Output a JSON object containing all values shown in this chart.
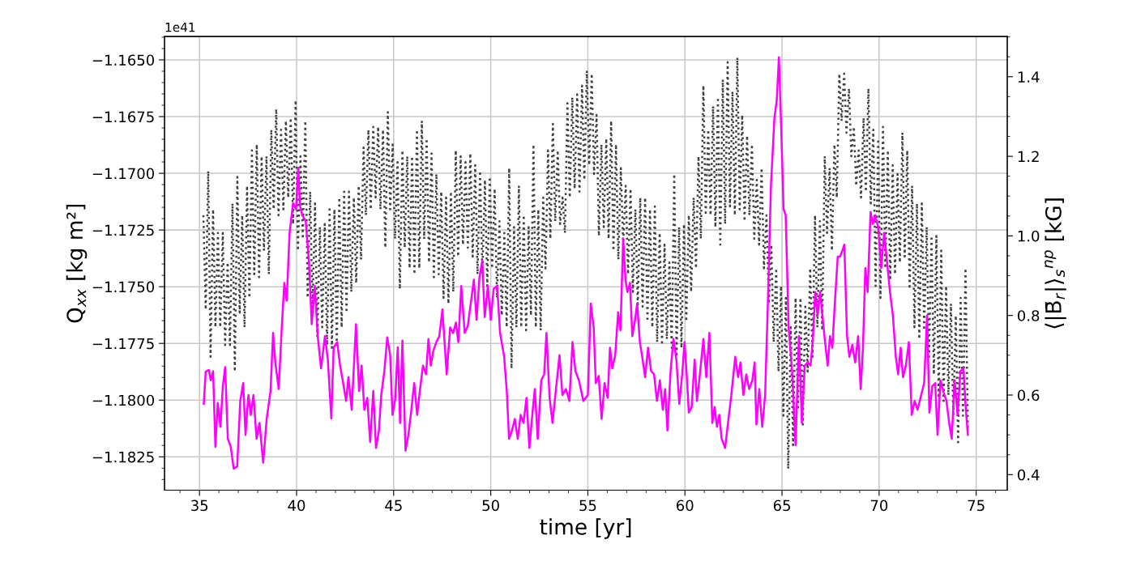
{
  "chart_data": {
    "type": "line",
    "xlabel": "time [yr]",
    "ylabel": "Q$_{xx}$ [kg m²]",
    "y2label": "⟨|B̄$_{r}$|⟩$_{s}$$^{np}$ [kG]",
    "annotations": [
      "1e41"
    ],
    "xlim": [
      33.2,
      76.6
    ],
    "xticks": [
      35,
      40,
      45,
      50,
      55,
      60,
      65,
      70,
      75
    ],
    "ylim": [
      -1.18397,
      -1.16397
    ],
    "yticks": [
      {
        "value": -1.1825,
        "label": "−1.1825"
      },
      {
        "value": -1.18,
        "label": "−1.1800"
      },
      {
        "value": -1.1775,
        "label": "−1.1775"
      },
      {
        "value": -1.175,
        "label": "−1.1750"
      },
      {
        "value": -1.1725,
        "label": "−1.1725"
      },
      {
        "value": -1.17,
        "label": "−1.1700"
      },
      {
        "value": -1.1675,
        "label": "−1.1675"
      },
      {
        "value": -1.165,
        "label": "−1.1650"
      }
    ],
    "y2lim": [
      0.361,
      1.501
    ],
    "y2ticks": [
      {
        "value": 0.4,
        "label": "0.4"
      },
      {
        "value": 0.6,
        "label": "0.6"
      },
      {
        "value": 0.8,
        "label": "0.8"
      },
      {
        "value": 1.0,
        "label": "1.0"
      },
      {
        "value": 1.2,
        "label": "1.2"
      },
      {
        "value": 1.4,
        "label": "1.4"
      }
    ],
    "grid": true,
    "legend": false,
    "series": [
      {
        "color": "#404040",
        "line_style": "dotted",
        "axis": "y",
        "x": [
          35.2,
          35.32,
          35.45,
          35.57,
          35.7,
          35.82,
          35.95,
          36.07,
          36.2,
          36.32,
          36.45,
          36.57,
          36.7,
          36.82,
          36.95,
          37.07,
          37.2,
          37.32,
          37.45,
          37.57,
          37.7,
          37.82,
          37.95,
          38.07,
          38.2,
          38.32,
          38.45,
          38.57,
          38.7,
          38.82,
          38.95,
          39.07,
          39.2,
          39.32,
          39.45,
          39.57,
          39.7,
          39.82,
          39.95,
          40.07,
          40.2,
          40.32,
          40.45,
          40.57,
          40.7,
          40.82,
          40.95,
          41.07,
          41.2,
          41.32,
          41.45,
          41.57,
          41.7,
          41.82,
          41.95,
          42.07,
          42.2,
          42.32,
          42.45,
          42.57,
          42.7,
          42.82,
          42.95,
          43.07,
          43.2,
          43.32,
          43.45,
          43.57,
          43.7,
          43.82,
          43.95,
          44.07,
          44.2,
          44.32,
          44.45,
          44.57,
          44.7,
          44.82,
          44.95,
          45.07,
          45.2,
          45.32,
          45.45,
          45.57,
          45.7,
          45.82,
          45.95,
          46.07,
          46.2,
          46.32,
          46.45,
          46.57,
          46.7,
          46.82,
          46.95,
          47.07,
          47.2,
          47.32,
          47.45,
          47.57,
          47.7,
          47.82,
          47.95,
          48.07,
          48.2,
          48.32,
          48.45,
          48.57,
          48.7,
          48.82,
          48.95,
          49.07,
          49.2,
          49.32,
          49.45,
          49.57,
          49.7,
          49.82,
          49.95,
          50.07,
          50.2,
          50.32,
          50.45,
          50.57,
          50.7,
          50.82,
          50.95,
          51.07,
          51.2,
          51.32,
          51.45,
          51.57,
          51.7,
          51.82,
          51.95,
          52.07,
          52.2,
          52.32,
          52.45,
          52.57,
          52.7,
          52.82,
          52.95,
          53.07,
          53.2,
          53.32,
          53.45,
          53.57,
          53.7,
          53.82,
          53.95,
          54.07,
          54.2,
          54.32,
          54.45,
          54.57,
          54.7,
          54.82,
          54.95,
          55.07,
          55.2,
          55.32,
          55.45,
          55.57,
          55.7,
          55.82,
          55.95,
          56.07,
          56.2,
          56.32,
          56.45,
          56.57,
          56.7,
          56.82,
          56.95,
          57.07,
          57.2,
          57.32,
          57.45,
          57.57,
          57.7,
          57.82,
          57.95,
          58.07,
          58.2,
          58.32,
          58.45,
          58.57,
          58.7,
          58.82,
          58.95,
          59.07,
          59.2,
          59.32,
          59.45,
          59.57,
          59.7,
          59.82,
          59.95,
          60.07,
          60.2,
          60.32,
          60.45,
          60.57,
          60.7,
          60.82,
          60.95,
          61.07,
          61.2,
          61.32,
          61.45,
          61.57,
          61.7,
          61.82,
          61.95,
          62.07,
          62.2,
          62.32,
          62.45,
          62.57,
          62.7,
          62.82,
          62.95,
          63.07,
          63.2,
          63.32,
          63.45,
          63.57,
          63.7,
          63.82,
          63.95,
          64.07,
          64.2,
          64.32,
          64.45,
          64.57,
          64.7,
          64.82,
          64.95,
          65.07,
          65.2,
          65.32,
          65.45,
          65.57,
          65.7,
          65.82,
          65.95,
          66.07,
          66.2,
          66.32,
          66.45,
          66.57,
          66.7,
          66.82,
          66.95,
          67.07,
          67.2,
          67.32,
          67.45,
          67.57,
          67.7,
          67.82,
          67.95,
          68.07,
          68.2,
          68.32,
          68.45,
          68.57,
          68.7,
          68.82,
          68.95,
          69.07,
          69.2,
          69.32,
          69.45,
          69.57,
          69.7,
          69.82,
          69.95,
          70.07,
          70.2,
          70.32,
          70.45,
          70.57,
          70.7,
          70.82,
          70.95,
          71.07,
          71.2,
          71.32,
          71.45,
          71.57,
          71.7,
          71.82,
          71.95,
          72.07,
          72.2,
          72.32,
          72.45,
          72.57,
          72.7,
          72.82,
          72.95,
          73.07,
          73.2,
          73.32,
          73.45,
          73.57,
          73.7,
          73.82,
          73.95,
          74.07,
          74.2,
          74.32,
          74.45,
          74.57
        ],
        "values": [
          -1.17185,
          -1.17601,
          -1.1699,
          -1.17809,
          -1.17159,
          -1.17679,
          -1.17263,
          -1.17679,
          -1.17263,
          -1.17757,
          -1.17393,
          -1.17757,
          -1.17133,
          -1.17874,
          -1.17016,
          -1.17614,
          -1.17185,
          -1.17679,
          -1.17055,
          -1.17549,
          -1.16899,
          -1.17445,
          -1.16873,
          -1.17458,
          -1.16925,
          -1.17341,
          -1.16925,
          -1.17445,
          -1.16808,
          -1.17159,
          -1.16717,
          -1.17185,
          -1.16808,
          -1.17159,
          -1.16769,
          -1.17107,
          -1.16756,
          -1.17224,
          -1.16678,
          -1.17341,
          -1.16925,
          -1.17289,
          -1.16769,
          -1.17549,
          -1.17081,
          -1.17614,
          -1.17133,
          -1.17718,
          -1.17237,
          -1.17679,
          -1.17224,
          -1.17757,
          -1.17159,
          -1.1777,
          -1.17159,
          -1.17757,
          -1.17107,
          -1.17679,
          -1.17081,
          -1.17614,
          -1.17081,
          -1.17523,
          -1.17107,
          -1.17484,
          -1.17055,
          -1.1738,
          -1.16886,
          -1.17185,
          -1.16808,
          -1.17159,
          -1.16795,
          -1.17107,
          -1.16795,
          -1.17159,
          -1.16808,
          -1.17328,
          -1.1673,
          -1.17159,
          -1.16873,
          -1.17289,
          -1.16951,
          -1.1751,
          -1.16899,
          -1.17328,
          -1.16925,
          -1.17419,
          -1.16925,
          -1.17445,
          -1.16808,
          -1.17419,
          -1.16769,
          -1.17289,
          -1.16847,
          -1.17393,
          -1.16912,
          -1.17458,
          -1.17003,
          -1.17445,
          -1.17081,
          -1.17549,
          -1.17107,
          -1.17575,
          -1.17081,
          -1.17523,
          -1.16899,
          -1.17367,
          -1.16925,
          -1.17315,
          -1.16951,
          -1.17328,
          -1.16912,
          -1.17367,
          -1.16964,
          -1.17445,
          -1.1699,
          -1.17445,
          -1.17029,
          -1.17497,
          -1.17016,
          -1.17419,
          -1.17068,
          -1.17549,
          -1.17211,
          -1.17627,
          -1.17263,
          -1.17679,
          -1.16977,
          -1.17861,
          -1.17237,
          -1.17679,
          -1.17055,
          -1.17679,
          -1.17185,
          -1.17692,
          -1.17237,
          -1.17627,
          -1.16873,
          -1.17679,
          -1.17159,
          -1.17692,
          -1.17107,
          -1.17419,
          -1.16899,
          -1.17289,
          -1.16782,
          -1.17211,
          -1.16899,
          -1.17224,
          -1.17107,
          -1.17263,
          -1.16691,
          -1.17107,
          -1.16665,
          -1.17068,
          -1.16652,
          -1.17081,
          -1.16613,
          -1.17029,
          -1.16548,
          -1.16964,
          -1.16561,
          -1.17003,
          -1.16743,
          -1.17276,
          -1.16873,
          -1.17237,
          -1.16847,
          -1.17289,
          -1.16769,
          -1.17341,
          -1.16873,
          -1.1738,
          -1.16977,
          -1.17315,
          -1.17055,
          -1.17445,
          -1.17068,
          -1.17523,
          -1.17159,
          -1.17588,
          -1.17107,
          -1.17588,
          -1.17107,
          -1.17653,
          -1.17159,
          -1.17679,
          -1.17146,
          -1.17744,
          -1.17263,
          -1.17757,
          -1.17315,
          -1.17731,
          -1.17393,
          -1.1777,
          -1.17003,
          -1.17809,
          -1.17237,
          -1.1777,
          -1.17224,
          -1.17653,
          -1.17185,
          -1.17523,
          -1.17107,
          -1.17419,
          -1.16925,
          -1.17289,
          -1.16613,
          -1.17185,
          -1.16808,
          -1.17185,
          -1.16704,
          -1.17237,
          -1.16665,
          -1.17315,
          -1.16587,
          -1.17224,
          -1.1651,
          -1.17146,
          -1.16639,
          -1.17185,
          -1.1649,
          -1.17159,
          -1.16743,
          -1.17211,
          -1.16834,
          -1.17185,
          -1.16873,
          -1.17289,
          -1.17029,
          -1.17315,
          -1.16977,
          -1.17419,
          -1.17185,
          -1.17575,
          -1.17315,
          -1.17744,
          -1.17419,
          -1.17874,
          -1.17497,
          -1.18069,
          -1.17549,
          -1.18303,
          -1.17679,
          -1.18199,
          -1.17549,
          -1.18043,
          -1.17549,
          -1.18108,
          -1.17588,
          -1.17874,
          -1.17419,
          -1.17809,
          -1.17185,
          -1.17679,
          -1.17211,
          -1.17692,
          -1.16925,
          -1.17263,
          -1.16977,
          -1.17341,
          -1.16873,
          -1.17107,
          -1.16561,
          -1.16769,
          -1.16561,
          -1.16821,
          -1.16626,
          -1.16925,
          -1.16795,
          -1.17055,
          -1.16899,
          -1.17107,
          -1.16756,
          -1.17081,
          -1.16626,
          -1.17133,
          -1.16808,
          -1.17497,
          -1.1686,
          -1.17549,
          -1.16795,
          -1.17419,
          -1.16899,
          -1.17471,
          -1.16964,
          -1.17445,
          -1.17003,
          -1.17393,
          -1.16821,
          -1.17367,
          -1.16899,
          -1.1751,
          -1.17055,
          -1.17679,
          -1.17133,
          -1.17731,
          -1.17133,
          -1.17692,
          -1.17237,
          -1.17809,
          -1.17276,
          -1.17887,
          -1.17276,
          -1.17991,
          -1.17341,
          -1.18004,
          -1.17497,
          -1.17978,
          -1.17575,
          -1.18069,
          -1.17627,
          -1.18186,
          -1.17549,
          -1.18069,
          -1.17419,
          -1.18121
        ]
      },
      {
        "color": "#ff00ff",
        "line_style": "solid",
        "axis": "y2",
        "x": [
          35.22,
          35.32,
          35.48,
          35.58,
          35.7,
          35.82,
          35.94,
          36.08,
          36.2,
          36.32,
          36.46,
          36.61,
          36.76,
          36.94,
          37.1,
          37.25,
          37.37,
          37.52,
          37.64,
          37.78,
          37.94,
          38.09,
          38.28,
          38.46,
          38.66,
          38.79,
          38.91,
          39.08,
          39.23,
          39.37,
          39.49,
          39.64,
          39.82,
          39.97,
          40.09,
          40.18,
          40.3,
          40.47,
          40.64,
          40.78,
          40.94,
          41.09,
          41.26,
          41.46,
          41.61,
          41.79,
          41.91,
          42.09,
          42.24,
          42.4,
          42.55,
          42.67,
          42.84,
          43.06,
          43.22,
          43.35,
          43.49,
          43.64,
          43.79,
          43.95,
          44.09,
          44.24,
          44.36,
          44.52,
          44.67,
          44.82,
          44.94,
          45.08,
          45.21,
          45.33,
          45.45,
          45.61,
          45.76,
          45.91,
          46.06,
          46.21,
          46.36,
          46.51,
          46.67,
          46.79,
          46.91,
          47.04,
          47.2,
          47.35,
          47.51,
          47.73,
          47.91,
          48.06,
          48.21,
          48.33,
          48.48,
          48.66,
          48.82,
          49.01,
          49.13,
          49.27,
          49.42,
          49.56,
          49.69,
          49.85,
          50.0,
          50.15,
          50.33,
          50.48,
          50.69,
          50.83,
          50.94,
          51.09,
          51.24,
          51.39,
          51.54,
          51.69,
          51.84,
          51.99,
          52.15,
          52.27,
          52.42,
          52.6,
          52.75,
          52.87,
          53.03,
          53.18,
          53.36,
          53.54,
          53.69,
          53.87,
          54.05,
          54.21,
          54.36,
          54.54,
          54.77,
          55.0,
          55.15,
          55.3,
          55.41,
          55.56,
          55.71,
          55.86,
          56.02,
          56.14,
          56.26,
          56.41,
          56.56,
          56.68,
          56.82,
          56.94,
          57.04,
          57.17,
          57.29,
          57.42,
          57.54,
          57.68,
          57.8,
          57.95,
          58.1,
          58.26,
          58.41,
          58.56,
          58.71,
          58.86,
          58.98,
          59.1,
          59.26,
          59.41,
          59.56,
          59.71,
          59.86,
          59.98,
          60.08,
          60.2,
          60.35,
          60.5,
          60.62,
          60.77,
          60.95,
          61.1,
          61.26,
          61.41,
          61.53,
          61.65,
          61.77,
          61.89,
          62.07,
          62.22,
          62.39,
          62.59,
          62.74,
          62.86,
          63.01,
          63.16,
          63.31,
          63.47,
          63.59,
          63.68,
          63.83,
          63.98,
          64.13,
          64.28,
          64.43,
          64.61,
          64.73,
          64.84,
          64.96,
          65.08,
          65.19,
          65.34,
          65.52,
          65.7,
          65.87,
          66.02,
          66.17,
          66.32,
          66.47,
          66.59,
          66.71,
          66.83,
          66.96,
          67.08,
          67.2,
          67.35,
          67.47,
          67.59,
          67.71,
          67.87,
          67.99,
          68.11,
          68.21,
          68.35,
          68.47,
          68.62,
          68.77,
          68.92,
          69.05,
          69.17,
          69.29,
          69.41,
          69.56,
          69.68,
          69.8,
          69.95,
          70.11,
          70.26,
          70.41,
          70.56,
          70.71,
          70.86,
          70.98,
          71.11,
          71.23,
          71.38,
          71.53,
          71.68,
          71.83,
          71.98,
          72.13,
          72.32,
          72.47,
          72.59,
          72.74,
          72.89,
          73.01,
          73.16,
          73.32,
          73.47,
          73.62,
          73.74,
          73.89,
          74.04,
          74.19,
          74.34,
          74.47,
          74.57
        ],
        "values": [
          0.578,
          0.659,
          0.663,
          0.637,
          0.66,
          0.47,
          0.58,
          0.52,
          0.62,
          0.67,
          0.49,
          0.47,
          0.415,
          0.42,
          0.585,
          0.63,
          0.5,
          0.6,
          0.55,
          0.6,
          0.49,
          0.53,
          0.43,
          0.54,
          0.61,
          0.756,
          0.68,
          0.615,
          0.763,
          0.882,
          0.837,
          1.008,
          1.082,
          1.067,
          1.171,
          1.074,
          1.052,
          1.037,
          0.934,
          0.778,
          0.874,
          0.748,
          0.667,
          0.748,
          0.689,
          0.541,
          0.719,
          0.733,
          0.674,
          0.63,
          0.585,
          0.645,
          0.563,
          0.778,
          0.61,
          0.674,
          0.563,
          0.593,
          0.482,
          0.61,
          0.467,
          0.51,
          0.6,
          0.66,
          0.745,
          0.7,
          0.55,
          0.59,
          0.72,
          0.53,
          0.737,
          0.46,
          0.5,
          0.563,
          0.63,
          0.55,
          0.615,
          0.674,
          0.652,
          0.741,
          0.674,
          0.711,
          0.733,
          0.748,
          0.815,
          0.652,
          0.77,
          0.756,
          0.782,
          0.733,
          0.874,
          0.756,
          0.774,
          0.845,
          0.89,
          0.789,
          0.896,
          0.937,
          0.796,
          0.874,
          0.789,
          0.867,
          0.874,
          0.756,
          0.696,
          0.607,
          0.49,
          0.51,
          0.54,
          0.49,
          0.55,
          0.53,
          0.593,
          0.467,
          0.556,
          0.615,
          0.49,
          0.637,
          0.652,
          0.756,
          0.593,
          0.53,
          0.615,
          0.7,
          0.6,
          0.615,
          0.585,
          0.733,
          0.66,
          0.637,
          0.585,
          0.6,
          0.83,
          0.77,
          0.63,
          0.648,
          0.54,
          0.63,
          0.593,
          0.719,
          0.667,
          0.7,
          0.808,
          0.763,
          0.993,
          0.889,
          0.859,
          0.882,
          0.748,
          0.785,
          0.83,
          0.733,
          0.696,
          0.645,
          0.719,
          0.66,
          0.652,
          0.585,
          0.637,
          0.563,
          0.615,
          0.511,
          0.66,
          0.741,
          0.689,
          0.578,
          0.652,
          0.733,
          0.66,
          0.556,
          0.57,
          0.689,
          0.585,
          0.652,
          0.741,
          0.645,
          0.756,
          0.53,
          0.57,
          0.52,
          0.55,
          0.49,
          0.467,
          0.53,
          0.6,
          0.696,
          0.645,
          0.682,
          0.6,
          0.652,
          0.615,
          0.637,
          0.682,
          0.526,
          0.615,
          0.52,
          0.6,
          0.845,
          1.126,
          1.297,
          1.341,
          1.449,
          1.267,
          1.067,
          1.052,
          0.77,
          0.66,
          0.474,
          0.748,
          0.53,
          0.674,
          0.682,
          0.674,
          0.741,
          0.859,
          0.8,
          0.859,
          0.8,
          0.741,
          0.674,
          0.748,
          0.719,
          0.822,
          0.948,
          0.948,
          0.963,
          0.978,
          0.748,
          0.696,
          0.726,
          0.682,
          0.748,
          0.615,
          0.719,
          0.919,
          0.859,
          1.06,
          1.03,
          1.052,
          1.022,
          0.919,
          1.008,
          0.934,
          0.859,
          0.8,
          0.696,
          0.652,
          0.719,
          0.645,
          0.674,
          0.733,
          0.55,
          0.585,
          0.563,
          0.593,
          0.63,
          0.8,
          0.556,
          0.622,
          0.63,
          0.5,
          0.637,
          0.607,
          0.585,
          0.526,
          0.49,
          0.637,
          0.55,
          0.66,
          0.667,
          0.563,
          0.5
        ]
      }
    ]
  }
}
